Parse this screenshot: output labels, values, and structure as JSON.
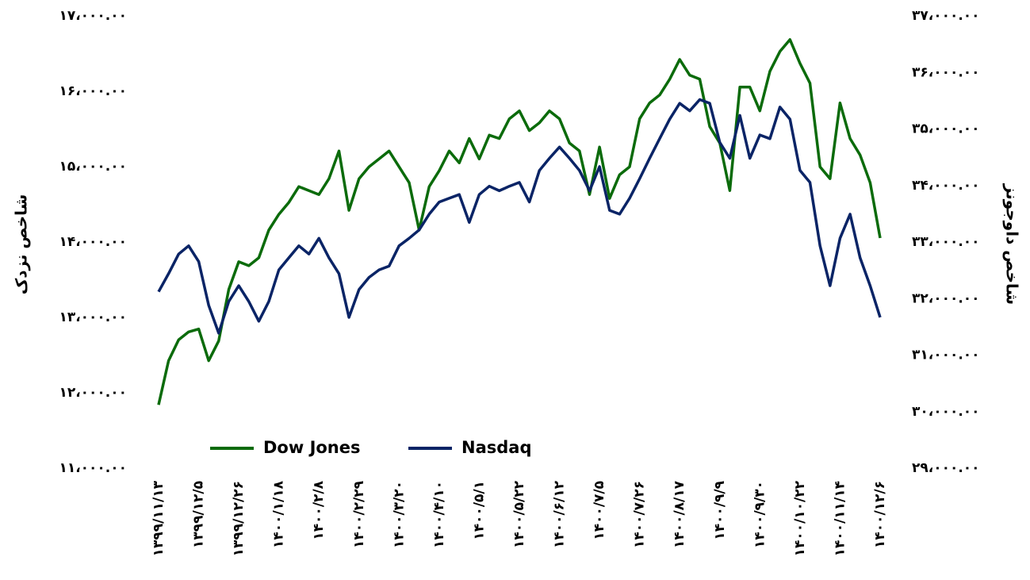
{
  "chart_data": {
    "type": "line",
    "y_label": "شاخص نزدک",
    "y2_label": "شاخص داوجونز",
    "legend": "bottom",
    "categories": [
      "۱۳۹۹/۱۱/۱۳",
      null,
      null,
      null,
      "۱۳۹۹/۱۲/۵",
      null,
      null,
      null,
      "۱۳۹۹/۱۲/۲۶",
      null,
      null,
      null,
      "۱۴۰۰/۱/۱۸",
      null,
      null,
      null,
      "۱۴۰۰/۲/۸",
      null,
      null,
      null,
      "۱۴۰۰/۲/۲۹",
      null,
      null,
      null,
      "۱۴۰۰/۳/۲۰",
      null,
      null,
      null,
      "۱۴۰۰/۴/۱۰",
      null,
      null,
      null,
      "۱۴۰۰/۵/۱",
      null,
      null,
      null,
      "۱۴۰۰/۵/۲۲",
      null,
      null,
      null,
      "۱۴۰۰/۶/۱۲",
      null,
      null,
      null,
      "۱۴۰۰/۷/۵",
      null,
      null,
      null,
      "۱۴۰۰/۷/۲۶",
      null,
      null,
      null,
      "۱۴۰۰/۸/۱۷",
      null,
      null,
      null,
      "۱۴۰۰/۹/۹",
      null,
      null,
      null,
      "۱۴۰۰/۹/۳۰",
      null,
      null,
      null,
      "۱۴۰۰/۱۰/۲۲",
      null,
      null,
      null,
      "۱۴۰۰/۱۱/۱۴",
      null,
      null,
      null,
      "۱۴۰۰/۱۲/۶"
    ],
    "series": [
      {
        "name": "Dow Jones",
        "color": "#0b6b0b",
        "axis": "y2",
        "values": [
          30120,
          30900,
          31270,
          31410,
          31460,
          30900,
          31250,
          32160,
          32650,
          32580,
          32720,
          33210,
          33490,
          33700,
          33980,
          33910,
          33840,
          34120,
          34610,
          33560,
          34120,
          34330,
          34470,
          34610,
          34330,
          34050,
          33210,
          33980,
          34260,
          34610,
          34400,
          34830,
          34470,
          34890,
          34830,
          35180,
          35320,
          34970,
          35110,
          35320,
          35180,
          34750,
          34610,
          33840,
          34680,
          33770,
          34190,
          34330,
          35180,
          35460,
          35600,
          35880,
          36230,
          35950,
          35880,
          35040,
          34750,
          33910,
          35740,
          35740,
          35320,
          36020,
          36370,
          36580,
          36160,
          35810,
          34330,
          34120,
          35460,
          34830,
          34540,
          34050,
          33070
        ]
      },
      {
        "name": "Nasdaq",
        "color": "#0a2466",
        "values": [
          13340,
          13580,
          13840,
          13950,
          13740,
          13160,
          12790,
          13210,
          13420,
          13210,
          12950,
          13210,
          13630,
          13790,
          13950,
          13840,
          14050,
          13790,
          13580,
          13000,
          13370,
          13530,
          13630,
          13680,
          13950,
          14050,
          14160,
          14370,
          14530,
          14580,
          14630,
          14260,
          14630,
          14740,
          14680,
          14740,
          14790,
          14530,
          14950,
          15110,
          15260,
          15110,
          14950,
          14680,
          15000,
          14420,
          14370,
          14580,
          14840,
          15110,
          15370,
          15630,
          15840,
          15740,
          15890,
          15840,
          15320,
          15110,
          15680,
          15110,
          15420,
          15370,
          15790,
          15630,
          14950,
          14790,
          13950,
          13420,
          14050,
          14370,
          13790,
          13420,
          13000
        ]
      }
    ],
    "ylim": [
      11000,
      17000
    ],
    "yticks": [
      {
        "value": 11000,
        "label": "۱۱،۰۰۰.۰۰"
      },
      {
        "value": 12000,
        "label": "۱۲،۰۰۰.۰۰"
      },
      {
        "value": 13000,
        "label": "۱۳،۰۰۰.۰۰"
      },
      {
        "value": 14000,
        "label": "۱۴،۰۰۰.۰۰"
      },
      {
        "value": 15000,
        "label": "۱۵،۰۰۰.۰۰"
      },
      {
        "value": 16000,
        "label": "۱۶،۰۰۰.۰۰"
      },
      {
        "value": 17000,
        "label": "۱۷،۰۰۰.۰۰"
      }
    ],
    "y2lim": [
      29000,
      37000
    ],
    "y2ticks": [
      {
        "value": 29000,
        "label": "۲۹،۰۰۰.۰۰"
      },
      {
        "value": 30000,
        "label": "۳۰،۰۰۰.۰۰"
      },
      {
        "value": 31000,
        "label": "۳۱،۰۰۰.۰۰"
      },
      {
        "value": 32000,
        "label": "۳۲،۰۰۰.۰۰"
      },
      {
        "value": 33000,
        "label": "۳۳،۰۰۰.۰۰"
      },
      {
        "value": 34000,
        "label": "۳۴،۰۰۰.۰۰"
      },
      {
        "value": 35000,
        "label": "۳۵،۰۰۰.۰۰"
      },
      {
        "value": 36000,
        "label": "۳۶،۰۰۰.۰۰"
      },
      {
        "value": 37000,
        "label": "۳۷،۰۰۰.۰۰"
      }
    ]
  }
}
